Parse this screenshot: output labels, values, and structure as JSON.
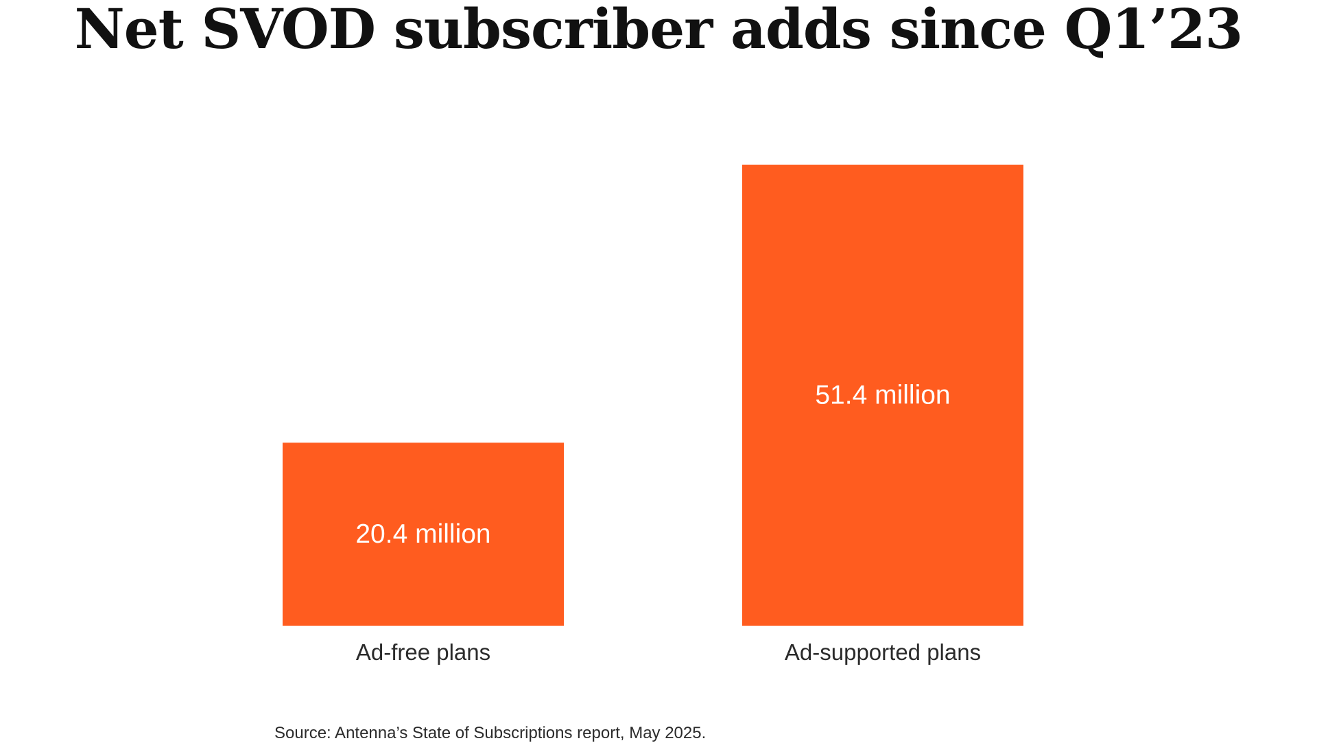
{
  "chart_data": {
    "type": "bar",
    "title": "Net SVOD subscriber adds since Q1’23",
    "categories": [
      "Ad-free plans",
      "Ad-supported plans"
    ],
    "values": [
      20.4,
      51.4
    ],
    "data_labels": [
      "20.4 million",
      "51.4 million"
    ],
    "unit": "million",
    "xlabel": "",
    "ylabel": "",
    "ylim": [
      0,
      51.4
    ],
    "grid": false,
    "legend": "none",
    "bar_color": "#FF5C1F",
    "source": "Source: Antenna’s State of Subscriptions report, May 2025."
  }
}
